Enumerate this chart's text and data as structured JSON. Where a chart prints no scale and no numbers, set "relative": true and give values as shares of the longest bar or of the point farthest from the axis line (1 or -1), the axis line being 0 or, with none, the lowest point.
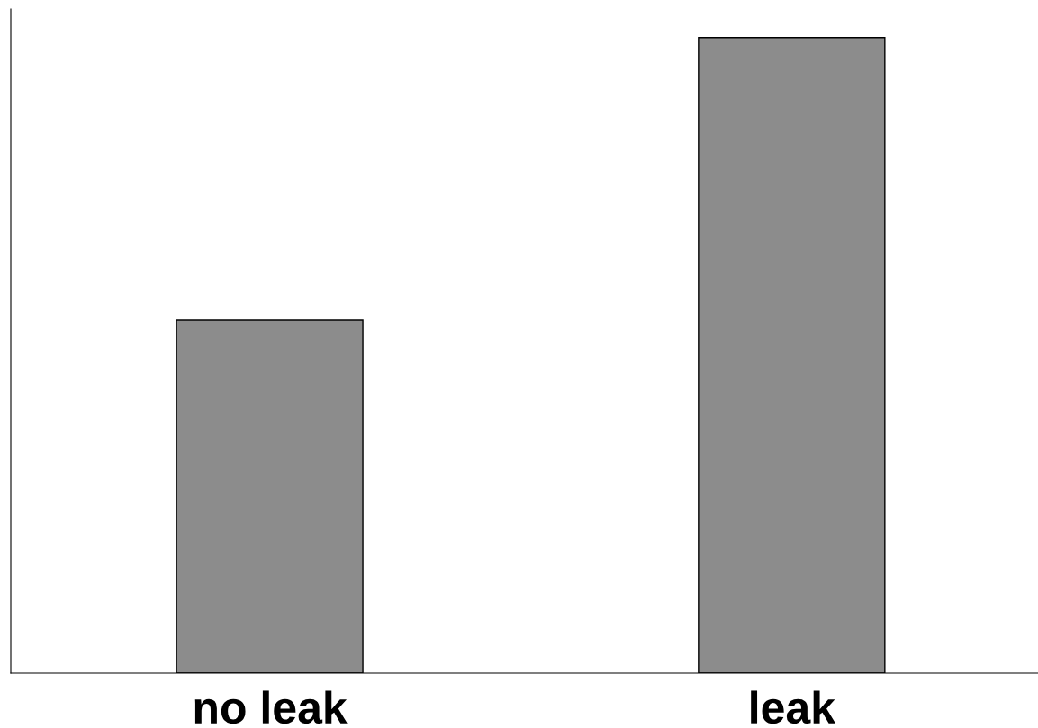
{
  "chart_data": {
    "type": "bar",
    "relative": true,
    "categories": [
      "no leak",
      "leak"
    ],
    "values": [
      0.555,
      1
    ],
    "color": "#8c8c8c"
  }
}
